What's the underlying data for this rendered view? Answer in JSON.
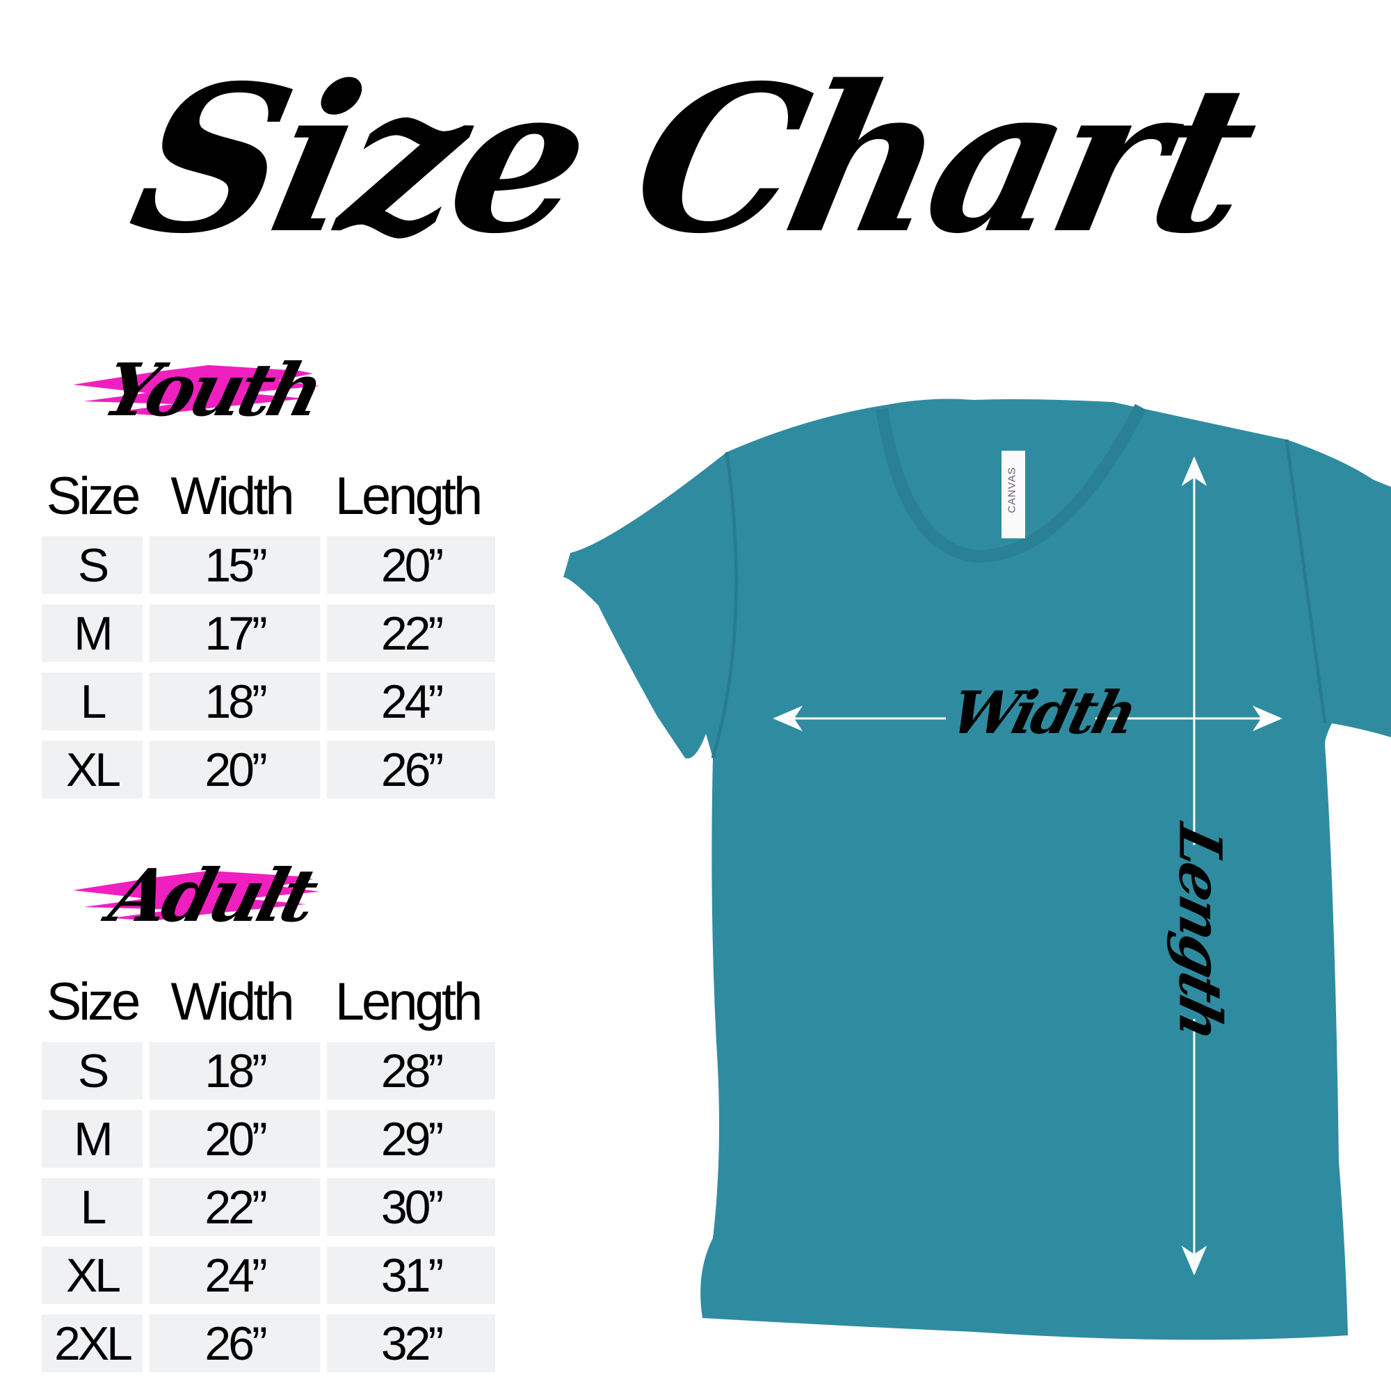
{
  "title": "Size Chart",
  "colors": {
    "accent_brush": "#f01fbf",
    "shirt": "#2f8ca0",
    "cell_bg": "#f0f1f3"
  },
  "youth": {
    "label": "Youth",
    "headers": [
      "Size",
      "Width",
      "Length"
    ],
    "rows": [
      [
        "S",
        "15”",
        "20”"
      ],
      [
        "M",
        "17”",
        "22”"
      ],
      [
        "L",
        "18”",
        "24”"
      ],
      [
        "XL",
        "20”",
        "26”"
      ]
    ]
  },
  "adult": {
    "label": "Adult",
    "headers": [
      "Size",
      "Width",
      "Length"
    ],
    "rows": [
      [
        "S",
        "18”",
        "28”"
      ],
      [
        "M",
        "20”",
        "29”"
      ],
      [
        "L",
        "22”",
        "30”"
      ],
      [
        "XL",
        "24”",
        "31”"
      ],
      [
        "2XL",
        "26”",
        "32”"
      ]
    ]
  },
  "diagram": {
    "width_label": "Width",
    "length_label": "Length",
    "tag_text": "CANVAS"
  }
}
